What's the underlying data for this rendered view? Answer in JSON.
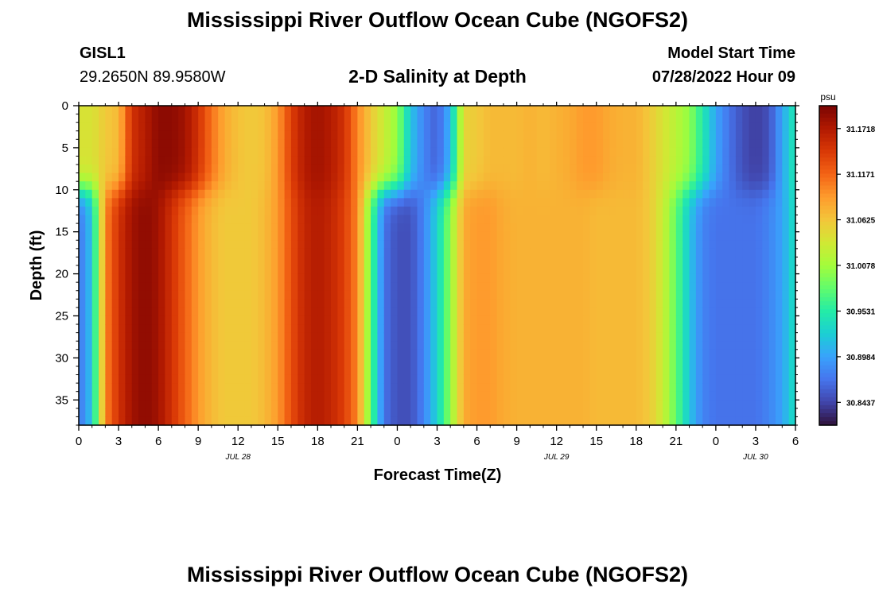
{
  "header": {
    "title": "Mississippi River Outflow Ocean Cube (NGOFS2)",
    "station_id": "GISL1",
    "station_coords": "29.2650N  89.9580W",
    "plot_title": "2-D Salinity at Depth",
    "model_start_label": "Model Start Time",
    "model_start_value": "07/28/2022 Hour 09"
  },
  "footer": {
    "next_title": "Mississippi River Outflow Ocean Cube (NGOFS2)"
  },
  "chart_data": {
    "type": "heatmap",
    "variable": "Salinity",
    "xlabel": "Forecast Time(Z)",
    "ylabel": "Depth (ft)",
    "x_range_hours": [
      0,
      54
    ],
    "y_range_ft": [
      0,
      38
    ],
    "y_inverted": true,
    "x_ticks": [
      "0",
      "3",
      "6",
      "9",
      "12",
      "15",
      "18",
      "21",
      "0",
      "3",
      "6",
      "9",
      "12",
      "15",
      "18",
      "21",
      "0",
      "3",
      "6"
    ],
    "date_labels": [
      {
        "label": "JUL 28",
        "at_hour": 12
      },
      {
        "label": "JUL 29",
        "at_hour": 36
      },
      {
        "label": "JUL 30",
        "at_hour": 51
      }
    ],
    "y_ticks": [
      0,
      5,
      10,
      15,
      20,
      25,
      30,
      35
    ],
    "colorbar": {
      "unit": "psu",
      "min": 30.8164,
      "max": 31.1992,
      "tick_labels": [
        "31.1718",
        "31.1171",
        "31.0625",
        "31.0078",
        "30.9531",
        "30.8984",
        "30.8437"
      ],
      "palette": [
        "#30123b",
        "#4145ab",
        "#4675ed",
        "#39a2fc",
        "#1bcfd4",
        "#24eca6",
        "#61fc6c",
        "#a4fc3b",
        "#d1e834",
        "#f3c63a",
        "#fe9b2d",
        "#f36315",
        "#d93806",
        "#b11901",
        "#7a0403"
      ]
    },
    "depth_profile_note": "upper/lower layer split near 10 ft",
    "surface_series": [
      {
        "hour": 0,
        "value": 31.04
      },
      {
        "hour": 1,
        "value": 31.04
      },
      {
        "hour": 2,
        "value": 31.06
      },
      {
        "hour": 3,
        "value": 31.07
      },
      {
        "hour": 4,
        "value": 31.15
      },
      {
        "hour": 5,
        "value": 31.17
      },
      {
        "hour": 6,
        "value": 31.19
      },
      {
        "hour": 7,
        "value": 31.19
      },
      {
        "hour": 8,
        "value": 31.18
      },
      {
        "hour": 9,
        "value": 31.15
      },
      {
        "hour": 10,
        "value": 31.11
      },
      {
        "hour": 11,
        "value": 31.08
      },
      {
        "hour": 12,
        "value": 31.065
      },
      {
        "hour": 13,
        "value": 31.06
      },
      {
        "hour": 14,
        "value": 31.065
      },
      {
        "hour": 15,
        "value": 31.09
      },
      {
        "hour": 16,
        "value": 31.14
      },
      {
        "hour": 17,
        "value": 31.17
      },
      {
        "hour": 18,
        "value": 31.18
      },
      {
        "hour": 19,
        "value": 31.17
      },
      {
        "hour": 20,
        "value": 31.15
      },
      {
        "hour": 21,
        "value": 31.1
      },
      {
        "hour": 22,
        "value": 31.06
      },
      {
        "hour": 23,
        "value": 31.03
      },
      {
        "hour": 24,
        "value": 31.0
      },
      {
        "hour": 25,
        "value": 30.92
      },
      {
        "hour": 26,
        "value": 30.88
      },
      {
        "hour": 27,
        "value": 30.86
      },
      {
        "hour": 28,
        "value": 30.91
      },
      {
        "hour": 29,
        "value": 31.05
      },
      {
        "hour": 30,
        "value": 31.06
      },
      {
        "hour": 31,
        "value": 31.07
      },
      {
        "hour": 32,
        "value": 31.07
      },
      {
        "hour": 33,
        "value": 31.07
      },
      {
        "hour": 34,
        "value": 31.075
      },
      {
        "hour": 35,
        "value": 31.07
      },
      {
        "hour": 36,
        "value": 31.075
      },
      {
        "hour": 37,
        "value": 31.08
      },
      {
        "hour": 38,
        "value": 31.09
      },
      {
        "hour": 39,
        "value": 31.09
      },
      {
        "hour": 40,
        "value": 31.08
      },
      {
        "hour": 41,
        "value": 31.075
      },
      {
        "hour": 42,
        "value": 31.075
      },
      {
        "hour": 43,
        "value": 31.06
      },
      {
        "hour": 44,
        "value": 31.04
      },
      {
        "hour": 45,
        "value": 31.02
      },
      {
        "hour": 46,
        "value": 31.0
      },
      {
        "hour": 47,
        "value": 30.95
      },
      {
        "hour": 48,
        "value": 30.9
      },
      {
        "hour": 49,
        "value": 30.87
      },
      {
        "hour": 50,
        "value": 30.85
      },
      {
        "hour": 51,
        "value": 30.84
      },
      {
        "hour": 52,
        "value": 30.85
      },
      {
        "hour": 53,
        "value": 30.9
      },
      {
        "hour": 54,
        "value": 30.95
      }
    ],
    "deep_series": [
      {
        "hour": 0,
        "value": 30.87
      },
      {
        "hour": 1,
        "value": 30.92
      },
      {
        "hour": 2,
        "value": 31.1
      },
      {
        "hour": 3,
        "value": 31.15
      },
      {
        "hour": 4,
        "value": 31.18
      },
      {
        "hour": 5,
        "value": 31.19
      },
      {
        "hour": 6,
        "value": 31.18
      },
      {
        "hour": 7,
        "value": 31.15
      },
      {
        "hour": 8,
        "value": 31.12
      },
      {
        "hour": 9,
        "value": 31.09
      },
      {
        "hour": 10,
        "value": 31.07
      },
      {
        "hour": 11,
        "value": 31.06
      },
      {
        "hour": 12,
        "value": 31.06
      },
      {
        "hour": 13,
        "value": 31.06
      },
      {
        "hour": 14,
        "value": 31.07
      },
      {
        "hour": 15,
        "value": 31.09
      },
      {
        "hour": 16,
        "value": 31.13
      },
      {
        "hour": 17,
        "value": 31.16
      },
      {
        "hour": 18,
        "value": 31.17
      },
      {
        "hour": 19,
        "value": 31.16
      },
      {
        "hour": 20,
        "value": 31.14
      },
      {
        "hour": 21,
        "value": 31.1
      },
      {
        "hour": 22,
        "value": 30.98
      },
      {
        "hour": 23,
        "value": 30.87
      },
      {
        "hour": 24,
        "value": 30.85
      },
      {
        "hour": 25,
        "value": 30.85
      },
      {
        "hour": 26,
        "value": 30.88
      },
      {
        "hour": 27,
        "value": 30.93
      },
      {
        "hour": 28,
        "value": 31.0
      },
      {
        "hour": 29,
        "value": 31.08
      },
      {
        "hour": 30,
        "value": 31.09
      },
      {
        "hour": 31,
        "value": 31.09
      },
      {
        "hour": 32,
        "value": 31.08
      },
      {
        "hour": 33,
        "value": 31.075
      },
      {
        "hour": 34,
        "value": 31.075
      },
      {
        "hour": 35,
        "value": 31.075
      },
      {
        "hour": 36,
        "value": 31.075
      },
      {
        "hour": 37,
        "value": 31.075
      },
      {
        "hour": 38,
        "value": 31.075
      },
      {
        "hour": 39,
        "value": 31.07
      },
      {
        "hour": 40,
        "value": 31.07
      },
      {
        "hour": 41,
        "value": 31.07
      },
      {
        "hour": 42,
        "value": 31.07
      },
      {
        "hour": 43,
        "value": 31.06
      },
      {
        "hour": 44,
        "value": 31.03
      },
      {
        "hour": 45,
        "value": 30.98
      },
      {
        "hour": 46,
        "value": 30.92
      },
      {
        "hour": 47,
        "value": 30.88
      },
      {
        "hour": 48,
        "value": 30.87
      },
      {
        "hour": 49,
        "value": 30.87
      },
      {
        "hour": 50,
        "value": 30.87
      },
      {
        "hour": 51,
        "value": 30.87
      },
      {
        "hour": 52,
        "value": 30.88
      },
      {
        "hour": 53,
        "value": 30.9
      },
      {
        "hour": 54,
        "value": 30.94
      }
    ]
  }
}
